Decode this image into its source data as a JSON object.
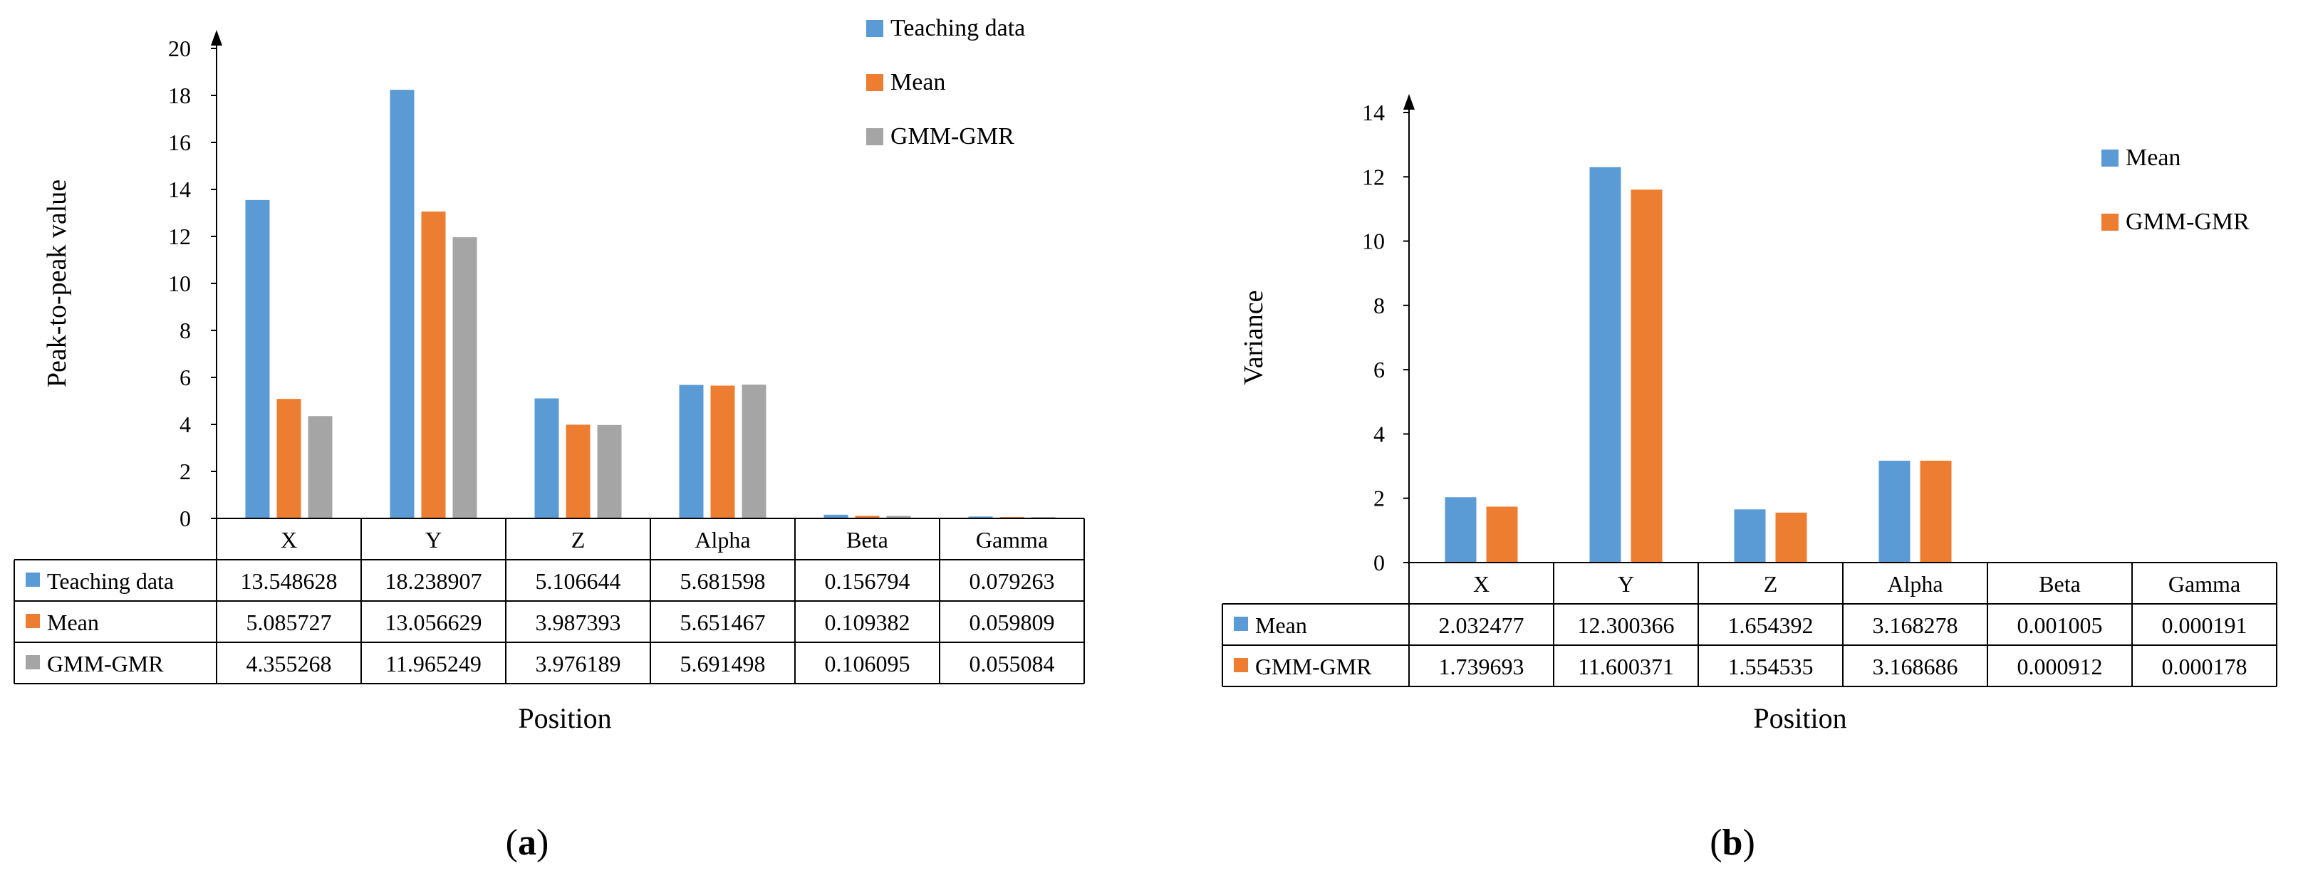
{
  "colors": {
    "teaching": "#5b9bd5",
    "mean_a": "#ed7d31",
    "gmm_a": "#a5a5a5",
    "mean_b": "#5b9bd5",
    "gmm_b": "#ed7d31"
  },
  "chart_data": [
    {
      "type": "bar",
      "panel_label": "a",
      "categories": [
        "X",
        "Y",
        "Z",
        "Alpha",
        "Beta",
        "Gamma"
      ],
      "series": [
        {
          "name": "Teaching data",
          "color": "#5b9bd5",
          "values": [
            13.548628,
            18.238907,
            5.106644,
            5.681598,
            0.156794,
            0.079263
          ],
          "labels": [
            "13.548628",
            "18.238907",
            "5.106644",
            "5.681598",
            "0.156794",
            "0.079263"
          ]
        },
        {
          "name": "Mean",
          "color": "#ed7d31",
          "values": [
            5.085727,
            13.056629,
            3.987393,
            5.651467,
            0.109382,
            0.059809
          ],
          "labels": [
            "5.085727",
            "13.056629",
            "3.987393",
            "5.651467",
            "0.109382",
            "0.059809"
          ]
        },
        {
          "name": "GMM-GMR",
          "color": "#a5a5a5",
          "values": [
            4.355268,
            11.965249,
            3.976189,
            5.691498,
            0.106095,
            0.055084
          ],
          "labels": [
            "4.355268",
            "11.965249",
            "3.976189",
            "5.691498",
            "0.106095",
            "0.055084"
          ]
        }
      ],
      "xlabel": "Position",
      "ylabel": "Peak-to-peak value",
      "ylim": [
        0,
        20
      ],
      "yticks": [
        "0",
        "2",
        "4",
        "6",
        "8",
        "10",
        "12",
        "14",
        "16",
        "18",
        "20"
      ],
      "legend_position": "top-right",
      "grid": false,
      "data_table": true
    },
    {
      "type": "bar",
      "panel_label": "b",
      "categories": [
        "X",
        "Y",
        "Z",
        "Alpha",
        "Beta",
        "Gamma"
      ],
      "series": [
        {
          "name": "Mean",
          "color": "#5b9bd5",
          "values": [
            2.032477,
            12.300366,
            1.654392,
            3.168278,
            0.001005,
            0.000191
          ],
          "labels": [
            "2.032477",
            "12.300366",
            "1.654392",
            "3.168278",
            "0.001005",
            "0.000191"
          ]
        },
        {
          "name": "GMM-GMR",
          "color": "#ed7d31",
          "values": [
            1.739693,
            11.600371,
            1.554535,
            3.168686,
            0.000912,
            0.000178
          ],
          "labels": [
            "1.739693",
            "11.600371",
            "1.554535",
            "3.168686",
            "0.000912",
            "0.000178"
          ]
        }
      ],
      "xlabel": "Position",
      "ylabel": "Variance",
      "ylim": [
        0,
        14
      ],
      "yticks": [
        "0",
        "2",
        "4",
        "6",
        "8",
        "10",
        "12",
        "14"
      ],
      "legend_position": "top-right",
      "grid": false,
      "data_table": true
    }
  ]
}
